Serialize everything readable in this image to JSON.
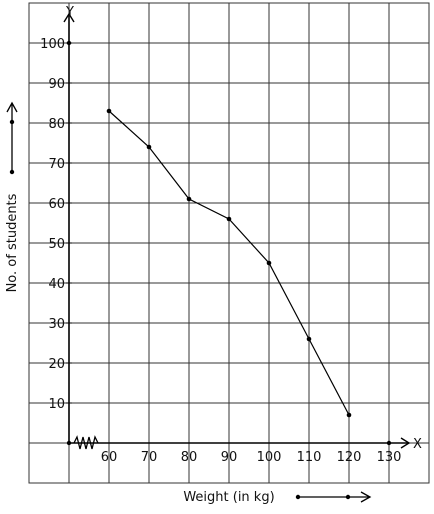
{
  "chart_data": {
    "type": "line",
    "title": "",
    "xlabel": "Weight (in kg)",
    "ylabel": "No. of students",
    "x_axis_letter": "X",
    "y_axis_letter": "Y",
    "xlim": [
      50,
      130
    ],
    "ylim": [
      0,
      100
    ],
    "x_ticks": [
      60,
      70,
      80,
      90,
      100,
      110,
      120,
      130
    ],
    "y_ticks": [
      10,
      20,
      30,
      40,
      50,
      60,
      70,
      80,
      90,
      100
    ],
    "axis_break": "zigzag on x-axis between 50 and 60",
    "grid": true,
    "series": [
      {
        "x": [
          60,
          70,
          80,
          90,
          100,
          110,
          120
        ],
        "y": [
          83,
          74,
          61,
          56,
          45,
          26,
          7
        ]
      }
    ],
    "line_color": "#000000",
    "grid_color": "#333333"
  }
}
